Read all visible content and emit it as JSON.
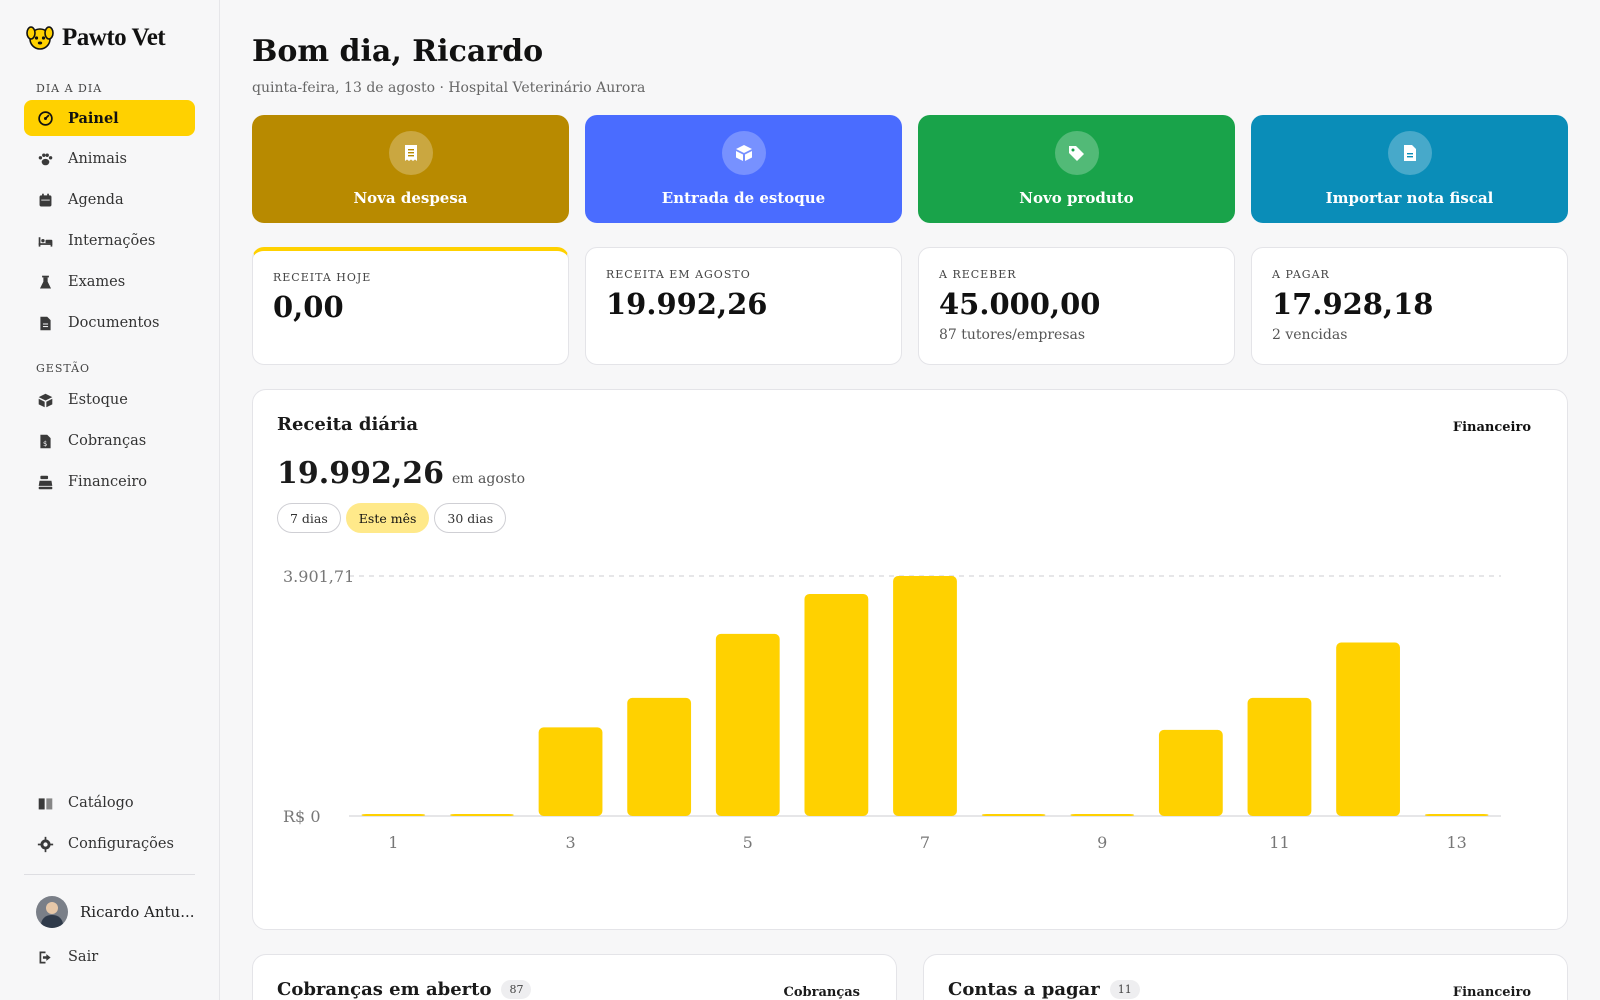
{
  "brand": {
    "name": "Pawto Vet"
  },
  "sidebar": {
    "section_daily": "DIA A DIA",
    "section_manage": "GESTÃO",
    "daily_items": [
      {
        "label": "Painel",
        "icon": "gauge-icon",
        "active": true
      },
      {
        "label": "Animais",
        "icon": "paw-icon"
      },
      {
        "label": "Agenda",
        "icon": "calendar-icon"
      },
      {
        "label": "Internações",
        "icon": "bed-icon"
      },
      {
        "label": "Exames",
        "icon": "flask-icon"
      },
      {
        "label": "Documentos",
        "icon": "document-icon"
      }
    ],
    "manage_items": [
      {
        "label": "Estoque",
        "icon": "box-icon"
      },
      {
        "label": "Cobranças",
        "icon": "invoice-icon"
      },
      {
        "label": "Financeiro",
        "icon": "cash-register-icon"
      }
    ],
    "bottom_items": [
      {
        "label": "Catálogo",
        "icon": "book-icon"
      },
      {
        "label": "Configurações",
        "icon": "gear-icon"
      }
    ],
    "user_name": "Ricardo Antu...",
    "logout_label": "Sair"
  },
  "header": {
    "greeting": "Bom dia, Ricardo",
    "subtitle": "quinta-feira, 13 de agosto · Hospital Veterinário Aurora"
  },
  "actions": [
    {
      "label": "Nova despesa",
      "icon": "receipt-icon",
      "color": "#b88a00"
    },
    {
      "label": "Entrada de estoque",
      "icon": "box-icon",
      "color": "#4a6cff"
    },
    {
      "label": "Novo produto",
      "icon": "tags-icon",
      "color": "#19a34a"
    },
    {
      "label": "Importar nota fiscal",
      "icon": "file-invoice-icon",
      "color": "#0a8db8"
    }
  ],
  "kpis": [
    {
      "label": "RECEITA HOJE",
      "value": "0,00",
      "sub": ""
    },
    {
      "label": "RECEITA EM AGOSTO",
      "value": "19.992,26",
      "sub": ""
    },
    {
      "label": "A RECEBER",
      "value": "45.000,00",
      "sub": "87 tutores/empresas"
    },
    {
      "label": "A PAGAR",
      "value": "17.928,18",
      "sub": "2 vencidas"
    }
  ],
  "revenue": {
    "title": "Receita diária",
    "link": "Financeiro",
    "total": "19.992,26",
    "total_suffix": "em agosto",
    "ranges": [
      "7 dias",
      "Este mês",
      "30 dias"
    ],
    "active_range": 1
  },
  "chart_data": {
    "type": "bar",
    "categories": [
      "1",
      "2",
      "3",
      "4",
      "5",
      "6",
      "7",
      "8",
      "9",
      "10",
      "11",
      "12",
      "13"
    ],
    "tick_labels": [
      "1",
      "3",
      "5",
      "7",
      "9",
      "11",
      "13"
    ],
    "values": [
      0,
      0,
      1440,
      1920,
      2960,
      3610,
      3901.71,
      0,
      0,
      1400,
      1920,
      2820,
      0
    ],
    "ylim": [
      0,
      3901.71
    ],
    "y_min_label": "R$ 0",
    "y_max_label": "3.901,71",
    "color": "#ffd100"
  },
  "bottom": [
    {
      "title": "Cobranças em aberto",
      "badge": "87",
      "link": "Cobranças"
    },
    {
      "title": "Contas a pagar",
      "badge": "11",
      "link": "Financeiro"
    }
  ]
}
